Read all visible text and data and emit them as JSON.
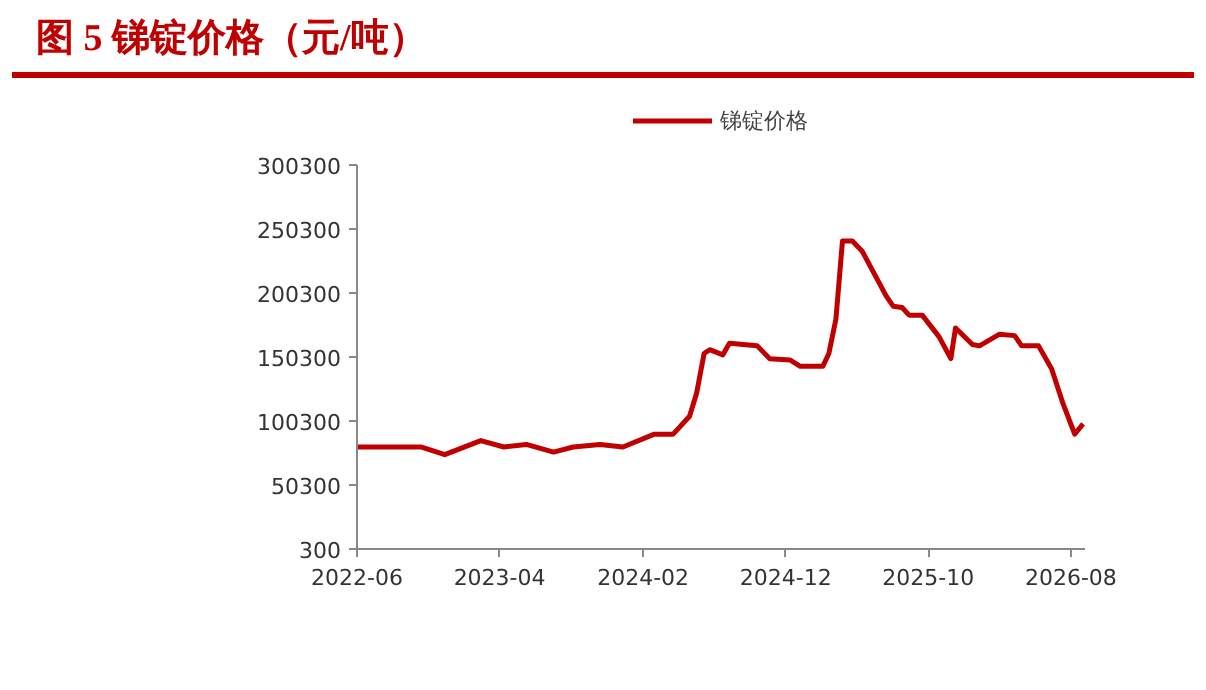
{
  "chart_data": {
    "type": "line",
    "title": "图 5 锑锭价格（元/吨）",
    "x": [
      "2022-06-01",
      "2022-10-15",
      "2022-12-05",
      "2023-02-20",
      "2023-04-10",
      "2023-05-28",
      "2023-07-25",
      "2023-09-05",
      "2023-11-01",
      "2023-12-20",
      "2024-02-25",
      "2024-04-05",
      "2024-05-10",
      "2024-05-25",
      "2024-06-10",
      "2024-06-22",
      "2024-07-20",
      "2024-08-03",
      "2024-10-01",
      "2024-10-28",
      "2024-12-10",
      "2025-01-01",
      "2025-02-18",
      "2025-03-03",
      "2025-03-18",
      "2025-04-01",
      "2025-04-22",
      "2025-05-13",
      "2025-07-03",
      "2025-07-18",
      "2025-08-06",
      "2025-08-21",
      "2025-09-18",
      "2025-10-24",
      "2025-11-18",
      "2025-11-28",
      "2026-01-03",
      "2026-01-18",
      "2026-03-01",
      "2026-04-03",
      "2026-04-18",
      "2026-05-24",
      "2026-06-21",
      "2026-07-15",
      "2026-08-09",
      "2026-08-27"
    ],
    "series": [
      {
        "name": "锑锭价格",
        "color": "#c00000",
        "values": [
          80000,
          80000,
          74000,
          85000,
          80000,
          82000,
          76000,
          80000,
          82000,
          80000,
          90000,
          90000,
          104000,
          122000,
          153000,
          156000,
          152000,
          161000,
          159000,
          149000,
          148000,
          143000,
          143000,
          153000,
          180000,
          241000,
          241000,
          233000,
          198000,
          190000,
          189000,
          183000,
          183000,
          166000,
          149000,
          173000,
          160000,
          159000,
          168000,
          167000,
          159000,
          159000,
          141000,
          114000,
          90000,
          98000
        ]
      }
    ],
    "xlim": [
      "2022-06-01",
      "2026-08-31"
    ],
    "xticks": [
      "2022-06",
      "2023-04",
      "2024-02",
      "2024-12",
      "2025-10",
      "2026-08"
    ],
    "ylim": [
      300,
      300300
    ],
    "yticks": [
      300,
      50300,
      100300,
      150300,
      200300,
      250300,
      300300
    ],
    "grid": false,
    "legend": "top",
    "marker": "none",
    "line_style": "solid"
  }
}
